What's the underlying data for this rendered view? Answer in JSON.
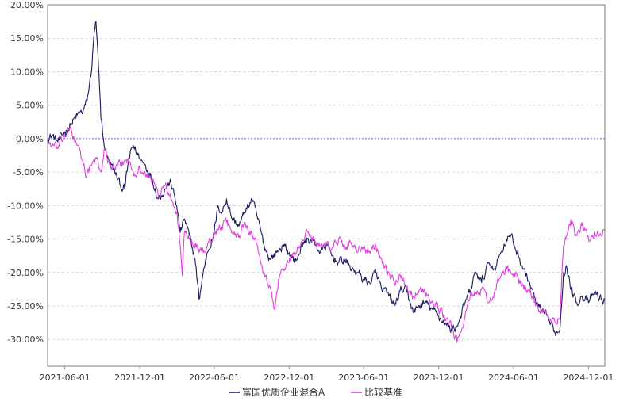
{
  "chart_data": {
    "type": "line",
    "title": "",
    "xlabel": "",
    "ylabel": "",
    "ylim": [
      -34,
      20
    ],
    "yticks": [
      20,
      15,
      10,
      5,
      0,
      -5,
      -10,
      -15,
      -20,
      -25,
      -30
    ],
    "ytick_labels": [
      "20.00%",
      "15.00%",
      "10.00%",
      "5.00%",
      "0.00%",
      "-5.00%",
      "-10.00%",
      "-15.00%",
      "-20.00%",
      "-25.00%",
      "-30.00%"
    ],
    "xlim": [
      "2021-04-20",
      "2025-01-10"
    ],
    "xticks": [
      "2021-06-01",
      "2021-12-01",
      "2022-06-01",
      "2022-12-01",
      "2023-06-01",
      "2023-12-01",
      "2024-06-01",
      "2024-12-01"
    ],
    "grid": true,
    "zero_line": true,
    "legend_position": "bottom-center",
    "series": [
      {
        "name": "富国优质企业混合A",
        "color": "#1a1a5e",
        "points": [
          [
            "2021-04-20",
            0.0
          ],
          [
            "2021-05-01",
            0.5
          ],
          [
            "2021-05-15",
            -0.5
          ],
          [
            "2021-06-01",
            1.0
          ],
          [
            "2021-06-15",
            2.0
          ],
          [
            "2021-07-01",
            3.5
          ],
          [
            "2021-07-15",
            4.0
          ],
          [
            "2021-07-25",
            5.5
          ],
          [
            "2021-08-05",
            10.0
          ],
          [
            "2021-08-12",
            16.0
          ],
          [
            "2021-08-16",
            17.5
          ],
          [
            "2021-08-22",
            11.0
          ],
          [
            "2021-08-28",
            3.0
          ],
          [
            "2021-09-05",
            -1.0
          ],
          [
            "2021-09-15",
            -3.0
          ],
          [
            "2021-10-01",
            -5.0
          ],
          [
            "2021-10-15",
            -7.0
          ],
          [
            "2021-10-25",
            -7.5
          ],
          [
            "2021-11-05",
            -3.0
          ],
          [
            "2021-11-15",
            -1.0
          ],
          [
            "2021-12-01",
            -3.0
          ],
          [
            "2021-12-15",
            -4.0
          ],
          [
            "2022-01-01",
            -6.0
          ],
          [
            "2022-01-15",
            -9.0
          ],
          [
            "2022-02-01",
            -7.5
          ],
          [
            "2022-02-15",
            -6.5
          ],
          [
            "2022-03-01",
            -10.0
          ],
          [
            "2022-03-10",
            -14.0
          ],
          [
            "2022-03-20",
            -12.0
          ],
          [
            "2022-04-01",
            -14.5
          ],
          [
            "2022-04-15",
            -18.0
          ],
          [
            "2022-04-25",
            -24.0
          ],
          [
            "2022-05-05",
            -20.0
          ],
          [
            "2022-05-15",
            -17.0
          ],
          [
            "2022-06-01",
            -14.0
          ],
          [
            "2022-06-10",
            -10.0
          ],
          [
            "2022-06-20",
            -11.0
          ],
          [
            "2022-07-01",
            -9.0
          ],
          [
            "2022-07-15",
            -12.0
          ],
          [
            "2022-08-01",
            -13.0
          ],
          [
            "2022-08-15",
            -11.0
          ],
          [
            "2022-09-01",
            -9.0
          ],
          [
            "2022-09-15",
            -12.0
          ],
          [
            "2022-10-01",
            -16.0
          ],
          [
            "2022-10-15",
            -18.0
          ],
          [
            "2022-11-01",
            -17.0
          ],
          [
            "2022-11-15",
            -16.0
          ],
          [
            "2022-12-01",
            -17.0
          ],
          [
            "2022-12-15",
            -18.5
          ],
          [
            "2023-01-01",
            -16.0
          ],
          [
            "2023-01-15",
            -15.0
          ],
          [
            "2023-02-01",
            -15.5
          ],
          [
            "2023-02-15",
            -17.0
          ],
          [
            "2023-03-01",
            -16.0
          ],
          [
            "2023-03-15",
            -17.5
          ],
          [
            "2023-04-01",
            -18.5
          ],
          [
            "2023-04-15",
            -18.0
          ],
          [
            "2023-05-01",
            -19.5
          ],
          [
            "2023-05-15",
            -20.0
          ],
          [
            "2023-06-01",
            -21.0
          ],
          [
            "2023-06-15",
            -21.5
          ],
          [
            "2023-07-01",
            -20.0
          ],
          [
            "2023-07-15",
            -22.5
          ],
          [
            "2023-08-01",
            -23.5
          ],
          [
            "2023-08-15",
            -25.0
          ],
          [
            "2023-09-01",
            -22.5
          ],
          [
            "2023-09-15",
            -23.0
          ],
          [
            "2023-10-01",
            -26.0
          ],
          [
            "2023-10-15",
            -25.0
          ],
          [
            "2023-11-01",
            -24.5
          ],
          [
            "2023-11-15",
            -25.5
          ],
          [
            "2023-12-01",
            -26.5
          ],
          [
            "2023-12-15",
            -27.5
          ],
          [
            "2024-01-01",
            -28.5
          ],
          [
            "2024-01-15",
            -28.0
          ],
          [
            "2024-02-01",
            -25.0
          ],
          [
            "2024-02-15",
            -23.0
          ],
          [
            "2024-03-01",
            -20.0
          ],
          [
            "2024-03-15",
            -21.5
          ],
          [
            "2024-04-01",
            -18.5
          ],
          [
            "2024-04-15",
            -19.5
          ],
          [
            "2024-05-01",
            -17.0
          ],
          [
            "2024-05-15",
            -15.0
          ],
          [
            "2024-05-25",
            -14.5
          ],
          [
            "2024-06-10",
            -17.0
          ],
          [
            "2024-06-25",
            -19.5
          ],
          [
            "2024-07-10",
            -21.5
          ],
          [
            "2024-07-25",
            -24.5
          ],
          [
            "2024-08-10",
            -26.0
          ],
          [
            "2024-08-25",
            -27.0
          ],
          [
            "2024-09-10",
            -29.0
          ],
          [
            "2024-09-22",
            -28.5
          ],
          [
            "2024-10-01",
            -20.0
          ],
          [
            "2024-10-08",
            -19.0
          ],
          [
            "2024-10-20",
            -22.5
          ],
          [
            "2024-11-01",
            -24.5
          ],
          [
            "2024-11-15",
            -23.5
          ],
          [
            "2024-12-01",
            -24.5
          ],
          [
            "2024-12-15",
            -23.0
          ],
          [
            "2025-01-01",
            -24.0
          ],
          [
            "2025-01-10",
            -24.5
          ]
        ]
      },
      {
        "name": "比较基准",
        "color": "#e040e0",
        "points": [
          [
            "2021-04-20",
            -0.5
          ],
          [
            "2021-05-01",
            -1.0
          ],
          [
            "2021-05-15",
            -1.5
          ],
          [
            "2021-06-01",
            0.5
          ],
          [
            "2021-06-15",
            1.5
          ],
          [
            "2021-07-01",
            -1.0
          ],
          [
            "2021-07-15",
            -3.5
          ],
          [
            "2021-07-25",
            -5.5
          ],
          [
            "2021-08-05",
            -4.0
          ],
          [
            "2021-08-16",
            -3.0
          ],
          [
            "2021-08-28",
            -5.0
          ],
          [
            "2021-09-05",
            -1.5
          ],
          [
            "2021-09-15",
            -3.5
          ],
          [
            "2021-10-01",
            -4.5
          ],
          [
            "2021-10-15",
            -4.0
          ],
          [
            "2021-11-01",
            -3.0
          ],
          [
            "2021-11-15",
            -5.0
          ],
          [
            "2021-12-01",
            -4.5
          ],
          [
            "2021-12-15",
            -5.5
          ],
          [
            "2022-01-01",
            -6.0
          ],
          [
            "2022-01-15",
            -8.5
          ],
          [
            "2022-02-01",
            -7.0
          ],
          [
            "2022-02-15",
            -9.0
          ],
          [
            "2022-03-01",
            -11.0
          ],
          [
            "2022-03-10",
            -16.0
          ],
          [
            "2022-03-15",
            -20.5
          ],
          [
            "2022-03-20",
            -14.0
          ],
          [
            "2022-04-01",
            -15.0
          ],
          [
            "2022-04-15",
            -16.0
          ],
          [
            "2022-04-25",
            -16.5
          ],
          [
            "2022-05-05",
            -17.0
          ],
          [
            "2022-05-15",
            -16.0
          ],
          [
            "2022-06-01",
            -14.0
          ],
          [
            "2022-06-15",
            -13.5
          ],
          [
            "2022-07-01",
            -12.5
          ],
          [
            "2022-07-15",
            -14.0
          ],
          [
            "2022-08-01",
            -14.5
          ],
          [
            "2022-08-15",
            -12.5
          ],
          [
            "2022-09-01",
            -14.0
          ],
          [
            "2022-09-15",
            -16.0
          ],
          [
            "2022-10-01",
            -20.0
          ],
          [
            "2022-10-15",
            -22.0
          ],
          [
            "2022-10-25",
            -25.5
          ],
          [
            "2022-11-05",
            -21.0
          ],
          [
            "2022-11-15",
            -19.5
          ],
          [
            "2022-12-01",
            -18.5
          ],
          [
            "2022-12-15",
            -17.0
          ],
          [
            "2023-01-01",
            -15.5
          ],
          [
            "2023-01-15",
            -14.0
          ],
          [
            "2023-02-01",
            -15.0
          ],
          [
            "2023-02-15",
            -16.0
          ],
          [
            "2023-03-01",
            -15.5
          ],
          [
            "2023-03-15",
            -16.5
          ],
          [
            "2023-04-01",
            -15.0
          ],
          [
            "2023-04-15",
            -16.0
          ],
          [
            "2023-05-01",
            -15.5
          ],
          [
            "2023-05-15",
            -17.0
          ],
          [
            "2023-06-01",
            -16.5
          ],
          [
            "2023-06-15",
            -17.0
          ],
          [
            "2023-07-01",
            -16.0
          ],
          [
            "2023-07-15",
            -18.0
          ],
          [
            "2023-08-01",
            -20.0
          ],
          [
            "2023-08-15",
            -21.5
          ],
          [
            "2023-09-01",
            -20.5
          ],
          [
            "2023-09-15",
            -22.0
          ],
          [
            "2023-10-01",
            -23.5
          ],
          [
            "2023-10-15",
            -22.5
          ],
          [
            "2023-11-01",
            -23.0
          ],
          [
            "2023-11-15",
            -24.5
          ],
          [
            "2023-12-01",
            -25.5
          ],
          [
            "2023-12-15",
            -26.5
          ],
          [
            "2024-01-01",
            -28.0
          ],
          [
            "2024-01-15",
            -30.5
          ],
          [
            "2024-02-01",
            -27.0
          ],
          [
            "2024-02-15",
            -24.0
          ],
          [
            "2024-03-01",
            -23.0
          ],
          [
            "2024-03-15",
            -22.5
          ],
          [
            "2024-04-01",
            -24.5
          ],
          [
            "2024-04-15",
            -23.0
          ],
          [
            "2024-05-01",
            -20.5
          ],
          [
            "2024-05-15",
            -19.5
          ],
          [
            "2024-05-25",
            -20.0
          ],
          [
            "2024-06-10",
            -20.5
          ],
          [
            "2024-06-25",
            -22.0
          ],
          [
            "2024-07-10",
            -23.0
          ],
          [
            "2024-07-25",
            -25.0
          ],
          [
            "2024-08-10",
            -26.0
          ],
          [
            "2024-08-25",
            -26.5
          ],
          [
            "2024-09-10",
            -27.5
          ],
          [
            "2024-09-22",
            -27.0
          ],
          [
            "2024-10-01",
            -16.0
          ],
          [
            "2024-10-08",
            -14.5
          ],
          [
            "2024-10-20",
            -12.0
          ],
          [
            "2024-11-01",
            -14.5
          ],
          [
            "2024-11-15",
            -13.0
          ],
          [
            "2024-12-01",
            -15.0
          ],
          [
            "2024-12-15",
            -14.0
          ],
          [
            "2025-01-01",
            -14.5
          ],
          [
            "2025-01-10",
            -13.5
          ]
        ]
      }
    ]
  },
  "legend": {
    "items": [
      {
        "label": "富国优质企业混合A",
        "color": "#1a1a5e"
      },
      {
        "label": "比较基准",
        "color": "#e040e0"
      }
    ]
  }
}
